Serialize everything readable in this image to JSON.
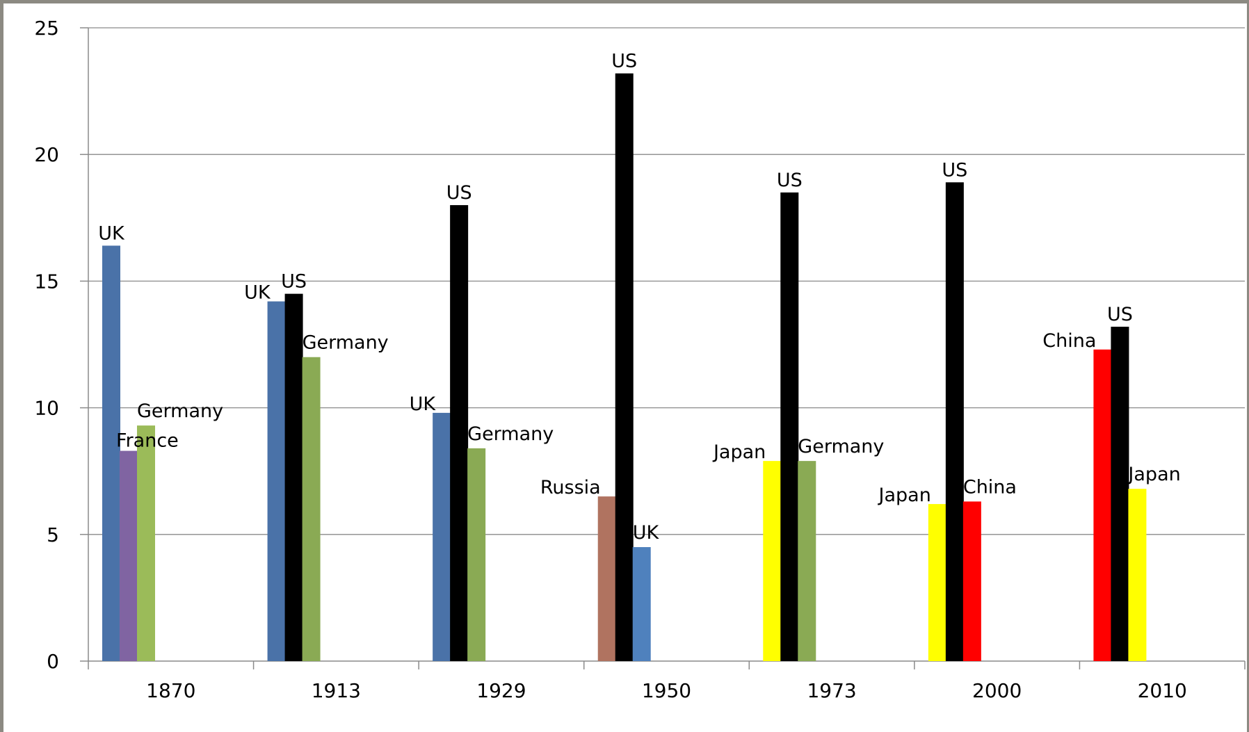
{
  "chart_data": {
    "type": "bar",
    "title": "",
    "xlabel": "",
    "ylabel": "",
    "ylim": [
      0,
      25
    ],
    "yticks": [
      0,
      5,
      10,
      15,
      20,
      25
    ],
    "grid": true,
    "legend": "none",
    "categories": [
      "1870",
      "1913",
      "1929",
      "1950",
      "1973",
      "2000",
      "2010"
    ],
    "groups": [
      {
        "category": "1870",
        "bars": [
          {
            "label": "UK",
            "value": 16.4,
            "color": "#4a72a8"
          },
          {
            "label": "France",
            "value": 8.3,
            "color": "#8064a2"
          },
          {
            "label": "Germany",
            "value": 9.3,
            "color": "#9bbb59"
          }
        ]
      },
      {
        "category": "1913",
        "bars": [
          {
            "label": "UK",
            "value": 14.2,
            "color": "#4a72a8"
          },
          {
            "label": "US",
            "value": 14.5,
            "color": "#000000"
          },
          {
            "label": "Germany",
            "value": 12.0,
            "color": "#8aaa54"
          }
        ]
      },
      {
        "category": "1929",
        "bars": [
          {
            "label": "UK",
            "value": 9.8,
            "color": "#4a72a8"
          },
          {
            "label": "US",
            "value": 18.0,
            "color": "#000000"
          },
          {
            "label": "Germany",
            "value": 8.4,
            "color": "#8aaa54"
          }
        ]
      },
      {
        "category": "1950",
        "bars": [
          {
            "label": "Russia",
            "value": 6.5,
            "color": "#b07360"
          },
          {
            "label": "US",
            "value": 23.2,
            "color": "#000000"
          },
          {
            "label": "UK",
            "value": 4.5,
            "color": "#4f81bd"
          }
        ]
      },
      {
        "category": "1973",
        "bars": [
          {
            "label": "Japan",
            "value": 7.9,
            "color": "#ffff00"
          },
          {
            "label": "US",
            "value": 18.5,
            "color": "#000000"
          },
          {
            "label": "Germany",
            "value": 7.9,
            "color": "#8aaa54"
          }
        ]
      },
      {
        "category": "2000",
        "bars": [
          {
            "label": "Japan",
            "value": 6.2,
            "color": "#ffff00"
          },
          {
            "label": "US",
            "value": 18.9,
            "color": "#000000"
          },
          {
            "label": "China",
            "value": 6.3,
            "color": "#ff0000"
          }
        ]
      },
      {
        "category": "2010",
        "bars": [
          {
            "label": "China",
            "value": 12.3,
            "color": "#ff0000"
          },
          {
            "label": "US",
            "value": 13.2,
            "color": "#000000"
          },
          {
            "label": "Japan",
            "value": 6.8,
            "color": "#ffff00"
          }
        ]
      }
    ]
  }
}
